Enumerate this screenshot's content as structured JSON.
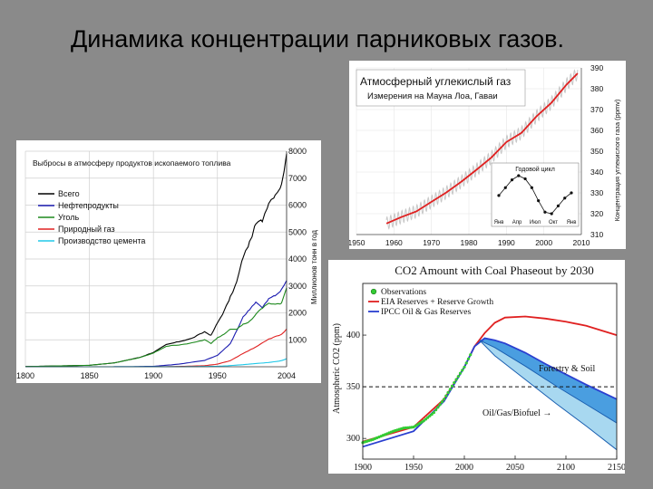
{
  "slide": {
    "title": "Динамика концентрации парниковых газов."
  },
  "colors": {
    "background": "#8a8a8a",
    "total": "#000000",
    "oil": "#1b1bb0",
    "coal": "#1f8a1f",
    "gas": "#e02020",
    "cement": "#20c8e8",
    "co2_trend": "#e02020",
    "co2_seasonal": "#c8c8c8",
    "observations": "#33cc33",
    "eia": "#e02020",
    "ipcc": "#2a3fd0",
    "forestry_band": "#4a9ee0",
    "biofuel_band": "#a8d8f0"
  },
  "chart_data": [
    {
      "id": "emissions",
      "type": "line",
      "title": "Выбросы в атмосферу продуктов ископаемого топлива",
      "xlabel": "",
      "ylabel": "Миллионов тонн в год",
      "xlim": [
        1800,
        2004
      ],
      "ylim": [
        0,
        8000
      ],
      "x_ticks": [
        1800,
        1850,
        1900,
        1950,
        2004
      ],
      "y_ticks": [
        1000,
        2000,
        3000,
        4000,
        5000,
        6000,
        7000,
        8000
      ],
      "grid": true,
      "legend_position": "top-left",
      "series": [
        {
          "name": "Всего",
          "color": "#000000",
          "x": [
            1800,
            1850,
            1870,
            1890,
            1900,
            1910,
            1920,
            1930,
            1940,
            1945,
            1950,
            1955,
            1960,
            1965,
            1970,
            1975,
            1980,
            1985,
            1990,
            1995,
            2000,
            2004
          ],
          "y": [
            8,
            54,
            147,
            356,
            534,
            819,
            932,
            1053,
            1299,
            1161,
            1630,
            2042,
            2577,
            3130,
            4076,
            4596,
            5299,
            5438,
            6098,
            6400,
            6735,
            7910
          ]
        },
        {
          "name": "Нефтепродукты",
          "color": "#1b1bb0",
          "x": [
            1800,
            1880,
            1900,
            1920,
            1940,
            1950,
            1960,
            1970,
            1975,
            1980,
            1985,
            1990,
            1995,
            2000,
            2004
          ],
          "y": [
            0,
            2,
            16,
            97,
            236,
            423,
            850,
            1839,
            2134,
            2405,
            2186,
            2517,
            2643,
            2846,
            3200
          ]
        },
        {
          "name": "Уголь",
          "color": "#1f8a1f",
          "x": [
            1800,
            1850,
            1870,
            1890,
            1900,
            1910,
            1920,
            1930,
            1940,
            1945,
            1950,
            1955,
            1960,
            1965,
            1970,
            1975,
            1980,
            1985,
            1990,
            1995,
            2000,
            2004
          ],
          "y": [
            8,
            54,
            146,
            348,
            507,
            760,
            813,
            881,
            1000,
            858,
            1078,
            1205,
            1410,
            1400,
            1571,
            1675,
            1947,
            2173,
            2361,
            2320,
            2338,
            2930
          ]
        },
        {
          "name": "Природный газ",
          "color": "#e02020",
          "x": [
            1800,
            1900,
            1920,
            1940,
            1950,
            1960,
            1970,
            1980,
            1990,
            2000,
            2004
          ],
          "y": [
            0,
            0,
            10,
            40,
            97,
            227,
            493,
            739,
            1018,
            1200,
            1400
          ]
        },
        {
          "name": "Производство цемента",
          "color": "#20c8e8",
          "x": [
            1800,
            1920,
            1940,
            1950,
            1960,
            1970,
            1980,
            1990,
            2000,
            2004
          ],
          "y": [
            0,
            3,
            10,
            18,
            43,
            78,
            120,
            157,
            226,
            300
          ]
        }
      ]
    },
    {
      "id": "maunaloa",
      "type": "line",
      "title": "Атмосферный углекислый газ",
      "subtitle": "Измерения на Мауна Лоа, Гаваи",
      "xlabel": "",
      "ylabel": "Концентрация углекислого газа (ppmv)",
      "xlim": [
        1950,
        2010
      ],
      "ylim": [
        310,
        390
      ],
      "x_ticks": [
        1950,
        1960,
        1970,
        1980,
        1990,
        2000,
        2010
      ],
      "y_ticks": [
        310,
        320,
        330,
        340,
        350,
        360,
        370,
        380,
        390
      ],
      "grid": true,
      "series": [
        {
          "name": "",
          "color": "#e02020",
          "x": [
            1958,
            1962,
            1966,
            1970,
            1974,
            1978,
            1982,
            1986,
            1990,
            1994,
            1998,
            2002,
            2006,
            2009
          ],
          "y": [
            315.3,
            318.4,
            321.1,
            325.7,
            330.2,
            335.4,
            341.1,
            347.0,
            354.4,
            358.8,
            366.7,
            373.2,
            381.9,
            387.4
          ]
        }
      ],
      "seasonal_amplitude": 6,
      "inset": {
        "title": "Годовой цикл",
        "x_labels": [
          "Янв",
          "Апр",
          "Июл",
          "Окт",
          "Янв"
        ],
        "values": [
          0,
          1.5,
          3.0,
          3.8,
          3.2,
          1.5,
          -1.0,
          -3.2,
          -3.5,
          -2.0,
          -0.5,
          0.5
        ]
      }
    },
    {
      "id": "phaseout",
      "type": "line",
      "title": "CO2 Amount with Coal Phaseout by 2030",
      "xlabel": "",
      "ylabel": "Atmospheric CO2 (ppm)",
      "xlim": [
        1900,
        2150
      ],
      "ylim": [
        280,
        450
      ],
      "x_ticks": [
        1900,
        1950,
        2000,
        2050,
        2100,
        2150
      ],
      "y_ticks": [
        300,
        350,
        400
      ],
      "reference_line": 350,
      "legend_position": "top-left",
      "legend": {
        "observations": "Observations",
        "eia": "EIA Reserves + Reserve Growth",
        "ipcc": "IPCC Oil & Gas Reserves"
      },
      "annotations": {
        "forestry": "Forestry & Soil",
        "biofuel": "Oil/Gas/Biofuel →"
      },
      "observations": {
        "x": [
          1900,
          1910,
          1920,
          1930,
          1940,
          1950,
          1960,
          1970,
          1980,
          1990,
          2000,
          2008
        ],
        "y": [
          296,
          299,
          303,
          307,
          310,
          311,
          317,
          325,
          338,
          354,
          369,
          385
        ]
      },
      "series": [
        {
          "name": "EIA Reserves + Reserve Growth",
          "color": "#e02020",
          "x": [
            1900,
            1950,
            1980,
            2000,
            2010,
            2020,
            2030,
            2040,
            2060,
            2080,
            2100,
            2120,
            2150
          ],
          "y": [
            297,
            311,
            338,
            369,
            389,
            402,
            412,
            417,
            418,
            416,
            413,
            409,
            400
          ]
        },
        {
          "name": "IPCC Oil & Gas Reserves",
          "color": "#2a3fd0",
          "x": [
            1900,
            1950,
            1980,
            2000,
            2010,
            2020,
            2030,
            2040,
            2060,
            2080,
            2100,
            2120,
            2150
          ],
          "y": [
            292,
            307,
            336,
            369,
            389,
            397,
            395,
            392,
            383,
            372,
            362,
            352,
            338
          ]
        },
        {
          "name": "",
          "color": "#1a5fb0",
          "x": [
            2015,
            2030,
            2060,
            2090,
            2120,
            2150
          ],
          "y": [
            395,
            380,
            357,
            334,
            312,
            289
          ]
        },
        {
          "name": "",
          "color": "#1a5fb0",
          "x": [
            2015,
            2030,
            2060,
            2090,
            2120,
            2150
          ],
          "y": [
            395,
            388,
            370,
            351,
            333,
            315
          ]
        }
      ]
    }
  ]
}
